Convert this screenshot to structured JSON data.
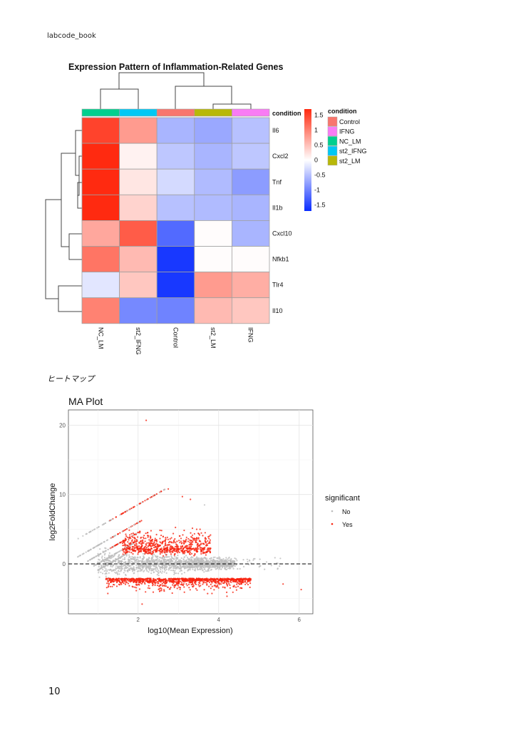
{
  "document": {
    "header": "labcode_book",
    "figure_caption": "ヒートマップ",
    "page_number": "10"
  },
  "chart_data": [
    {
      "type": "heatmap",
      "title": "Expression Pattern of Inflammation-Related Genes",
      "columns": [
        "NC_LM",
        "st2_IFNG",
        "Control",
        "st2_LM",
        "IFNG"
      ],
      "rows": [
        "Il6",
        "Cxcl2",
        "Tnf",
        "Il1b",
        "Cxcl10",
        "Nfkb1",
        "Tlr4",
        "Il10"
      ],
      "values": [
        [
          1.5,
          0.8,
          -0.6,
          -0.7,
          -0.5
        ],
        [
          1.7,
          0.1,
          -0.45,
          -0.6,
          -0.45
        ],
        [
          1.7,
          0.2,
          -0.3,
          -0.55,
          -0.8
        ],
        [
          1.7,
          0.35,
          -0.5,
          -0.55,
          -0.6
        ],
        [
          0.7,
          1.3,
          -1.2,
          0.02,
          -0.6
        ],
        [
          1.1,
          0.55,
          -1.6,
          0.02,
          0.02
        ],
        [
          -0.2,
          0.45,
          -1.6,
          0.8,
          0.65
        ],
        [
          1.0,
          -0.95,
          -1.0,
          0.55,
          0.45
        ]
      ],
      "color_scale": {
        "low": "#0a2cff",
        "mid": "#ffffff",
        "high": "#ff2a10",
        "range": [
          -1.7,
          1.7
        ],
        "ticks": [
          "1.5",
          "1",
          "0.5",
          "0",
          "-0.5",
          "-1",
          "-1.5"
        ],
        "tick_values": [
          1.5,
          1,
          0.5,
          0,
          -0.5,
          -1,
          -1.5
        ]
      },
      "annotation": {
        "title": "condition",
        "legend": [
          {
            "label": "Control",
            "color": "#f8766d"
          },
          {
            "label": "IFNG",
            "color": "#f97cf4"
          },
          {
            "label": "NC_LM",
            "color": "#00cf8e"
          },
          {
            "label": "st2_IFNG",
            "color": "#00c8f4"
          },
          {
            "label": "st2_LM",
            "color": "#b8b808"
          }
        ],
        "column_conditions": [
          "NC_LM",
          "st2_IFNG",
          "Control",
          "st2_LM",
          "IFNG"
        ]
      },
      "row_dendrogram": true,
      "column_dendrogram": true
    },
    {
      "type": "scatter",
      "title": "MA Plot",
      "xlabel": "log10(Mean Expression)",
      "ylabel": "log2FoldChange",
      "xlim": [
        0.27,
        6.34
      ],
      "ylim": [
        -7.2,
        22.2
      ],
      "xticks": [
        "2",
        "4",
        "6"
      ],
      "xtick_values": [
        2,
        4,
        6
      ],
      "yticks": [
        "0",
        "10",
        "20"
      ],
      "ytick_values": [
        0,
        10,
        20
      ],
      "grid": true,
      "reference_line": {
        "y": 0,
        "style": "dashed"
      },
      "legend": {
        "title": "significant",
        "position": "right",
        "entries": [
          {
            "label": "No",
            "color": "#bdbdbd"
          },
          {
            "label": "Yes",
            "color": "#f8230f"
          }
        ]
      },
      "notable_points": [
        {
          "x": 2.2,
          "y": 20.7,
          "significant": "Yes"
        },
        {
          "x": 2.75,
          "y": 10.8,
          "significant": "Yes"
        },
        {
          "x": 3.1,
          "y": 9.7,
          "significant": "Yes"
        },
        {
          "x": 3.3,
          "y": 9.3,
          "significant": "Yes"
        },
        {
          "x": 3.65,
          "y": 8.5,
          "significant": "No"
        },
        {
          "x": 6.05,
          "y": -3.7,
          "significant": "Yes"
        },
        {
          "x": 5.6,
          "y": -2.9,
          "significant": "Yes"
        },
        {
          "x": 2.1,
          "y": -5.8,
          "significant": "Yes"
        }
      ]
    }
  ]
}
